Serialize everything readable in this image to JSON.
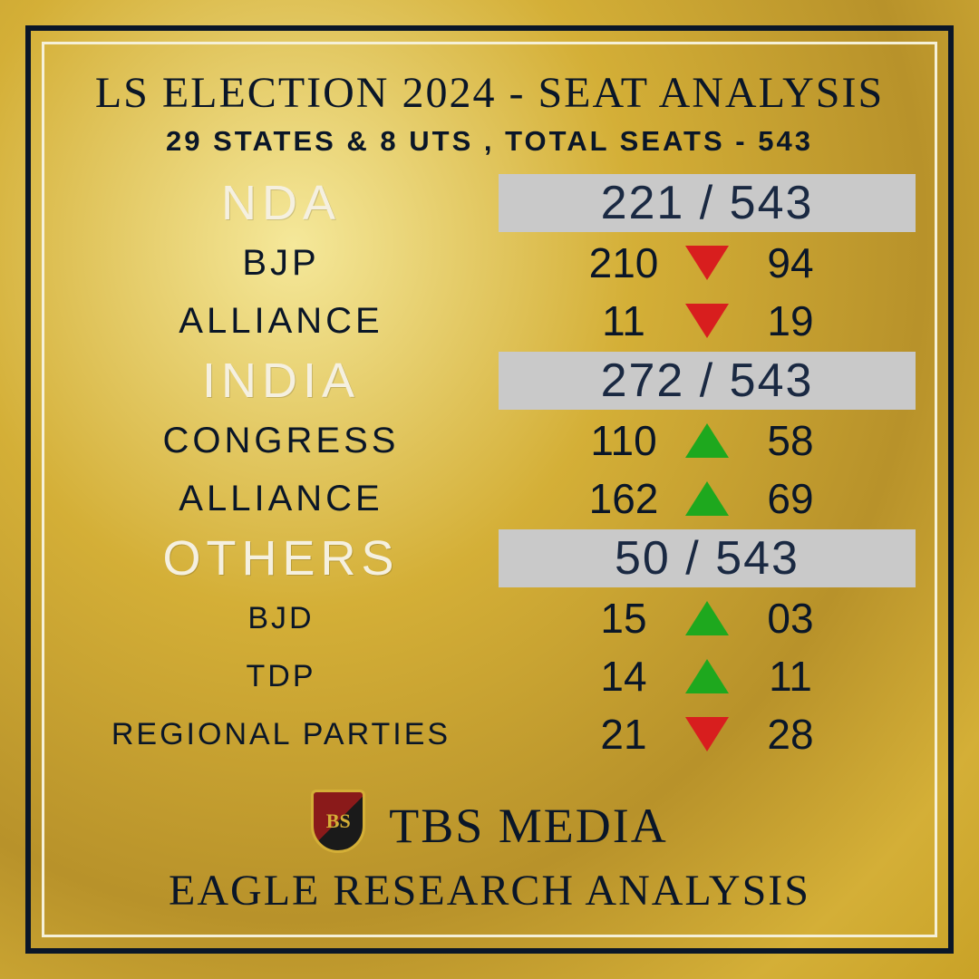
{
  "title": "LS ELECTION 2024 - SEAT ANALYSIS",
  "subtitle": "29 STATES & 8 UTS , TOTAL SEATS - 543",
  "colors": {
    "gold_light": "#f5e89a",
    "gold_mid": "#d4af37",
    "gold_dark": "#b8922a",
    "frame_dark": "#0a1628",
    "frame_light": "#f5f0d8",
    "header_text": "#f5f0e0",
    "box_bg": "#c9c9c9",
    "box_text": "#1a2942",
    "body_text": "#0a1628",
    "arrow_down": "#d81e1e",
    "arrow_up": "#1ea81e"
  },
  "fonts": {
    "title_family": "Georgia, serif",
    "title_size_pt": 36,
    "subtitle_family": "Impact, Arial Black, sans-serif",
    "subtitle_size_pt": 23,
    "header_label_size_pt": 40,
    "sub_label_size_pt": 30,
    "sub_label_sm_size_pt": 26,
    "stat_size_pt": 34,
    "box_size_pt": 39,
    "brand_size_pt": 40,
    "footer_sub_size_pt": 36
  },
  "groups": [
    {
      "name": "NDA",
      "total": "221 / 543",
      "rows": [
        {
          "label": "BJP",
          "value": "210",
          "dir": "down",
          "change": "94",
          "size": "md"
        },
        {
          "label": "ALLIANCE",
          "value": "11",
          "dir": "down",
          "change": "19",
          "size": "md"
        }
      ]
    },
    {
      "name": "INDIA",
      "total": "272 / 543",
      "rows": [
        {
          "label": "CONGRESS",
          "value": "110",
          "dir": "up",
          "change": "58",
          "size": "md"
        },
        {
          "label": "ALLIANCE",
          "value": "162",
          "dir": "up",
          "change": "69",
          "size": "md"
        }
      ]
    },
    {
      "name": "OTHERS",
      "total": "50 / 543",
      "rows": [
        {
          "label": "BJD",
          "value": "15",
          "dir": "up",
          "change": "03",
          "size": "sm"
        },
        {
          "label": "TDP",
          "value": "14",
          "dir": "up",
          "change": "11",
          "size": "sm"
        },
        {
          "label": "REGIONAL PARTIES",
          "value": "21",
          "dir": "down",
          "change": "28",
          "size": "sm"
        }
      ]
    }
  ],
  "footer": {
    "brand": "TBS MEDIA",
    "subline": "EAGLE RESEARCH ANALYSIS",
    "logo_monogram": "BS"
  }
}
